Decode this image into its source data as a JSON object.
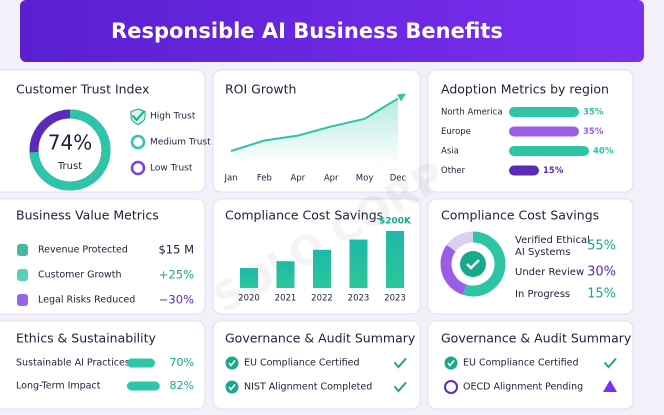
{
  "header": {
    "title": "Responsible AI Business Benefits"
  },
  "watermark": "SOLO CORP",
  "trust": {
    "title": "Customer Trust Index",
    "value": 74,
    "value_label": "74%",
    "label": "Trust",
    "color": "#2ec4a6",
    "legend": [
      "High Trust",
      "Medium Trust",
      "Low Trust"
    ]
  },
  "growth": {
    "title": "ROI Growth",
    "type": "line",
    "categories": [
      "Jan",
      "Feb",
      "Apr",
      "Apr",
      "Moy",
      "Dec"
    ],
    "values": [
      20,
      35,
      42,
      55,
      66,
      95
    ],
    "ylim": [
      0,
      100
    ],
    "color": "#2ec4a6"
  },
  "adoption": {
    "title": "Adoption Metrics by region",
    "type": "bar",
    "categories": [
      "North America",
      "Europe",
      "Asia",
      "Other"
    ],
    "values": [
      35,
      35,
      40,
      15
    ],
    "value_labels": [
      "35%",
      "35%",
      "40%",
      "15%"
    ],
    "xlim": [
      0,
      50
    ],
    "colors": [
      "#2ec4a6",
      "#9b5de5",
      "#2ec4a6",
      "#5b2bb5"
    ]
  },
  "business": {
    "title": "Business Value Metrics",
    "rows": [
      {
        "label": "Revenue Protected",
        "value": "$15 M",
        "color": "#1f1f3a"
      },
      {
        "label": "Customer Growth",
        "value": "+25%",
        "color": "#19a88c"
      },
      {
        "label": "Legal Risks Reduced",
        "value": "−30%",
        "color": "#5b2bb5"
      }
    ]
  },
  "savings": {
    "title": "Compliance Cost Savings",
    "type": "bar",
    "annotation": "$200K",
    "categories": [
      "2020",
      "2021",
      "2022",
      "2023",
      "2023"
    ],
    "values": [
      35,
      47,
      67,
      85,
      100
    ],
    "ylim": [
      0,
      100
    ]
  },
  "status": {
    "title": "Compliance Cost Savings",
    "type": "pie",
    "labels": [
      "Verified Ethical AI Systems",
      "Under Review",
      "In Progress"
    ],
    "values": [
      55,
      30,
      15
    ],
    "value_labels": [
      "55%",
      "30%",
      "15%"
    ],
    "colors": [
      "#2ec4a6",
      "#9b5de5",
      "#d9d2ef"
    ],
    "label_colors": [
      "#19a88c",
      "#5b2bb5",
      "#19a88c"
    ]
  },
  "ethics": {
    "title": "Ethics & Sustainability",
    "labels": [
      "Sustainable AI Practices",
      "Long-Term Impact"
    ],
    "values": [
      70,
      82
    ],
    "value_labels": [
      "70%",
      "82%"
    ],
    "xlim": [
      0,
      100
    ]
  },
  "gov1": {
    "title": "Governance & Audit Summary",
    "items": [
      "EU Compliance Certified",
      "NIST Alignment Completed"
    ]
  },
  "gov2": {
    "title": "Governance & Audit Summary",
    "items": [
      "EU Compliance Certified",
      "OECD Alignment Pending"
    ]
  }
}
